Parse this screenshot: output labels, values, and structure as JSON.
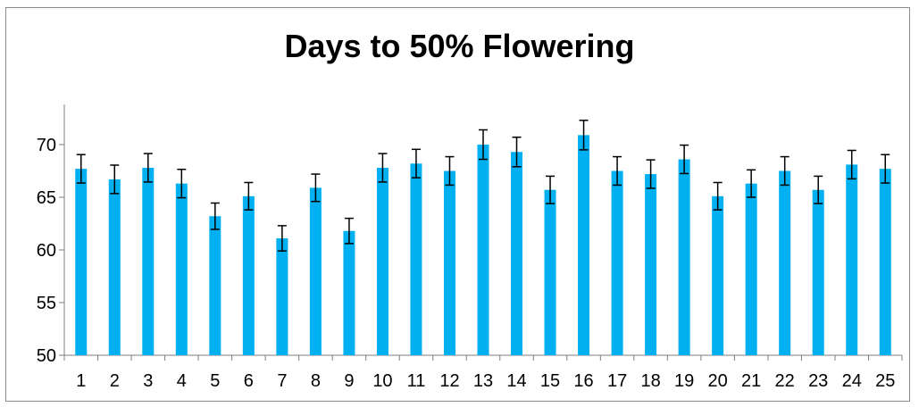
{
  "chart_data": {
    "type": "bar",
    "title": "Days to 50% Flowering",
    "xlabel": "",
    "ylabel": "",
    "categories": [
      "1",
      "2",
      "3",
      "4",
      "5",
      "6",
      "7",
      "8",
      "9",
      "10",
      "11",
      "12",
      "13",
      "14",
      "15",
      "16",
      "17",
      "18",
      "19",
      "20",
      "21",
      "22",
      "23",
      "24",
      "25"
    ],
    "values": [
      67.7,
      66.7,
      67.8,
      66.3,
      63.2,
      65.1,
      61.1,
      65.9,
      61.8,
      67.8,
      68.2,
      67.5,
      70.0,
      69.3,
      65.7,
      70.9,
      67.5,
      67.2,
      68.6,
      65.1,
      66.3,
      67.5,
      65.7,
      68.1,
      67.7
    ],
    "errors": [
      1.35,
      1.35,
      1.35,
      1.35,
      1.25,
      1.3,
      1.2,
      1.3,
      1.2,
      1.35,
      1.35,
      1.35,
      1.4,
      1.4,
      1.3,
      1.4,
      1.35,
      1.35,
      1.35,
      1.3,
      1.3,
      1.35,
      1.3,
      1.35,
      1.35
    ],
    "ylim": [
      50,
      73
    ],
    "yticks": [
      "50",
      "55",
      "60",
      "65",
      "70"
    ],
    "grid": false,
    "legend": "none",
    "bar_color": "#00b0f0",
    "error_color": "#000000",
    "axis_color": "#7f7f7f"
  }
}
